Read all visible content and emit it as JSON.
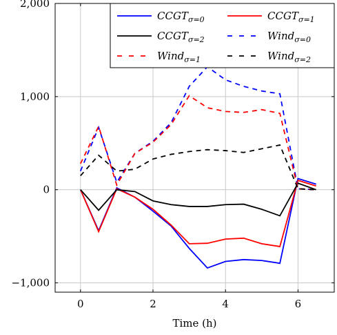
{
  "chart_data": {
    "type": "line",
    "title": "",
    "xlabel": "Time (h)",
    "ylabel": "",
    "xlim": [
      -0.7,
      7.0
    ],
    "ylim": [
      -1100,
      2000
    ],
    "xticks": [
      0,
      2,
      4,
      6
    ],
    "yticks": [
      -1000,
      0,
      1000,
      2000
    ],
    "xtick_labels": [
      "0",
      "2",
      "4",
      "6"
    ],
    "ytick_labels": [
      "−1,000",
      "0",
      "1,000",
      "2,000"
    ],
    "grid": true,
    "legend_position": "top-right",
    "x": [
      0,
      0.5,
      1,
      1.5,
      2,
      2.5,
      3,
      3.5,
      4,
      4.5,
      5,
      5.5,
      6,
      6.5
    ],
    "series": [
      {
        "name": "CCGT",
        "subscript": "σ=0",
        "color": "#0000ff",
        "dash": "solid",
        "values": [
          0,
          -440,
          20,
          -80,
          -230,
          -390,
          -630,
          -840,
          -770,
          -750,
          -760,
          -790,
          120,
          60
        ]
      },
      {
        "name": "CCGT",
        "subscript": "σ=1",
        "color": "#ff0000",
        "dash": "solid",
        "values": [
          0,
          -450,
          10,
          -80,
          -210,
          -380,
          -580,
          -575,
          -530,
          -520,
          -580,
          -610,
          100,
          40
        ]
      },
      {
        "name": "CCGT",
        "subscript": "σ=2",
        "color": "#000000",
        "dash": "solid",
        "values": [
          0,
          -220,
          0,
          -20,
          -120,
          -160,
          -180,
          -180,
          -160,
          -155,
          -210,
          -280,
          70,
          0
        ]
      },
      {
        "name": "Wind",
        "subscript": "σ=0",
        "color": "#0000ff",
        "dash": "dashed",
        "values": [
          200,
          670,
          80,
          390,
          520,
          720,
          1110,
          1320,
          1180,
          1110,
          1060,
          1030,
          10,
          0
        ]
      },
      {
        "name": "Wind",
        "subscript": "σ=1",
        "color": "#ff0000",
        "dash": "dashed",
        "values": [
          280,
          680,
          50,
          390,
          510,
          700,
          1010,
          880,
          840,
          830,
          860,
          820,
          10,
          0
        ]
      },
      {
        "name": "Wind",
        "subscript": "σ=2",
        "color": "#000000",
        "dash": "dashed",
        "values": [
          150,
          370,
          200,
          220,
          330,
          380,
          410,
          430,
          420,
          400,
          440,
          480,
          10,
          0
        ]
      }
    ]
  }
}
